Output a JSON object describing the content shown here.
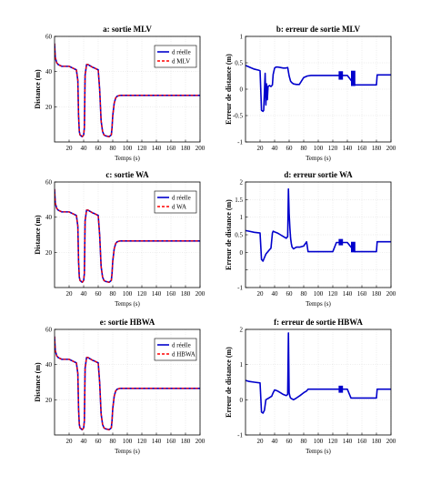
{
  "chart_data": [
    {
      "type": "line",
      "title": "a: sortie MLV",
      "xlabel": "Temps (s)",
      "ylabel": "Distance (m)",
      "xlim": [
        0,
        200
      ],
      "ylim": [
        0,
        60
      ],
      "xticks": [
        20,
        40,
        60,
        80,
        100,
        120,
        140,
        160,
        180,
        200
      ],
      "yticks": [
        20,
        40,
        60
      ],
      "grid": true,
      "legend_position": "top-right",
      "series": [
        {
          "name": "d réelle",
          "color": "#0000cc",
          "dash": false,
          "x": [
            0,
            1,
            3,
            5,
            10,
            20,
            25,
            30,
            32,
            33,
            34,
            35,
            38,
            40,
            41,
            42,
            44,
            46,
            48,
            50,
            52,
            55,
            60,
            62,
            64,
            66,
            68,
            70,
            75,
            78,
            79,
            80,
            82,
            84,
            86,
            90,
            100,
            120,
            140,
            160,
            180,
            200
          ],
          "y": [
            56,
            48,
            45,
            44,
            43,
            43,
            42,
            41,
            35,
            15,
            6,
            4,
            3,
            4,
            8,
            38,
            44,
            44,
            43.5,
            43,
            42.5,
            42,
            41,
            30,
            12,
            6,
            4,
            3.5,
            3,
            4,
            8,
            15,
            22,
            25,
            26,
            26.5,
            26.5,
            26.5,
            26.5,
            26.5,
            26.5,
            26.5
          ]
        },
        {
          "name": "d MLV",
          "color": "#ff0000",
          "dash": true,
          "x": [
            0,
            1,
            3,
            5,
            10,
            20,
            25,
            30,
            32,
            33,
            34,
            35,
            38,
            40,
            41,
            42,
            44,
            46,
            48,
            50,
            52,
            55,
            60,
            62,
            64,
            66,
            68,
            70,
            75,
            78,
            79,
            80,
            82,
            84,
            86,
            90,
            100,
            120,
            140,
            160,
            180,
            200
          ],
          "y": [
            56,
            48,
            45,
            44,
            43,
            43,
            42,
            41,
            35,
            15,
            6,
            4,
            3,
            4,
            8,
            38,
            44,
            44,
            43.5,
            43,
            42.5,
            42,
            41,
            30,
            12,
            6,
            4,
            3.5,
            3,
            4,
            8,
            15,
            22,
            25,
            26,
            26.5,
            26.5,
            26.5,
            26.5,
            26.5,
            26.5,
            26.5
          ]
        }
      ]
    },
    {
      "type": "line",
      "title": "b: erreur de sortie MLV",
      "xlabel": "Temps (s)",
      "ylabel": "Erreur de distance (m)",
      "xlim": [
        0,
        200
      ],
      "ylim": [
        -1,
        1
      ],
      "xticks": [
        20,
        40,
        60,
        80,
        100,
        120,
        140,
        160,
        180,
        200
      ],
      "yticks": [
        -1,
        -0.5,
        0,
        0.5,
        1
      ],
      "ytick_labels": [
        "-1",
        "-0.5",
        "0",
        "0.5",
        "1"
      ],
      "grid": true,
      "series": [
        {
          "name": "",
          "color": "#0000cc",
          "x": [
            0,
            5,
            12,
            18,
            20,
            22,
            24,
            25,
            27,
            28,
            29,
            30,
            31,
            33,
            35,
            37,
            38,
            40,
            42,
            44,
            48,
            52,
            55,
            58,
            60,
            62,
            64,
            66,
            70,
            74,
            80,
            85,
            90,
            100,
            110,
            120,
            128,
            140,
            150,
            160,
            170,
            180,
            181,
            190,
            200
          ],
          "y": [
            0.45,
            0.42,
            0.38,
            0.36,
            0.35,
            -0.4,
            -0.42,
            -0.4,
            0.3,
            -0.3,
            0.1,
            -0.2,
            0.05,
            0.07,
            0.05,
            0.08,
            0.28,
            0.4,
            0.42,
            0.42,
            0.41,
            0.4,
            0.4,
            0.41,
            0.25,
            0.15,
            0.12,
            0.1,
            0.09,
            0.09,
            0.22,
            0.25,
            0.26,
            0.26,
            0.26,
            0.26,
            0.26,
            0.26,
            0.08,
            0.08,
            0.08,
            0.08,
            0.27,
            0.27,
            0.27
          ]
        }
      ],
      "bands": [
        {
          "x": [
            128,
            134
          ],
          "y": [
            0.18,
            0.34
          ]
        },
        {
          "x": [
            145,
            151
          ],
          "y": [
            0.06,
            0.35
          ]
        }
      ]
    },
    {
      "type": "line",
      "title": "c: sortie WA",
      "xlabel": "Temps (s)",
      "ylabel": "Distance (m)",
      "xlim": [
        0,
        200
      ],
      "ylim": [
        0,
        60
      ],
      "xticks": [
        20,
        40,
        60,
        80,
        100,
        120,
        140,
        160,
        180,
        200
      ],
      "yticks": [
        20,
        40,
        60
      ],
      "grid": true,
      "legend_position": "top-right",
      "series": [
        {
          "name": "d réelle",
          "color": "#0000cc",
          "dash": false,
          "x": [
            0,
            1,
            3,
            5,
            10,
            20,
            25,
            30,
            32,
            33,
            34,
            35,
            38,
            40,
            41,
            42,
            44,
            46,
            48,
            50,
            52,
            55,
            60,
            62,
            64,
            66,
            68,
            70,
            75,
            78,
            79,
            80,
            82,
            84,
            86,
            90,
            100,
            120,
            140,
            160,
            180,
            200
          ],
          "y": [
            56,
            48,
            45,
            44,
            43,
            43,
            42,
            41,
            35,
            15,
            6,
            4,
            3,
            4,
            8,
            38,
            44,
            44,
            43.5,
            43,
            42.5,
            42,
            41,
            30,
            12,
            6,
            4,
            3.5,
            3,
            4,
            8,
            15,
            22,
            25,
            26,
            26.5,
            26.5,
            26.5,
            26.5,
            26.5,
            26.5,
            26.5
          ]
        },
        {
          "name": "d WA",
          "color": "#ff0000",
          "dash": true,
          "x": [
            0,
            1,
            3,
            5,
            10,
            20,
            25,
            30,
            32,
            33,
            34,
            35,
            38,
            40,
            41,
            42,
            44,
            46,
            48,
            50,
            52,
            55,
            60,
            62,
            64,
            66,
            68,
            70,
            75,
            78,
            79,
            80,
            82,
            84,
            86,
            90,
            100,
            120,
            140,
            160,
            180,
            200
          ],
          "y": [
            56,
            48,
            45,
            44,
            43,
            43,
            42,
            41,
            35,
            15,
            6,
            4,
            3,
            4,
            8,
            38,
            44,
            44,
            43.5,
            43,
            42.5,
            42,
            41,
            30,
            12,
            6,
            4,
            3.5,
            3,
            4,
            8,
            15,
            22,
            25,
            26,
            26.5,
            26.5,
            26.5,
            26.5,
            26.5,
            26.5,
            26.5
          ]
        }
      ]
    },
    {
      "type": "line",
      "title": "d: erreur sortie WA",
      "xlabel": "Temps (s)",
      "ylabel": "Erreur de distance (m)",
      "xlim": [
        0,
        200
      ],
      "ylim": [
        -1,
        2
      ],
      "xticks": [
        20,
        40,
        60,
        80,
        100,
        120,
        140,
        160,
        180,
        200
      ],
      "yticks": [
        -1,
        -0.5,
        0,
        0.5,
        1,
        1.5,
        2
      ],
      "ytick_labels": [
        "-1",
        "",
        "0",
        "0.5",
        "1",
        "1.5",
        "2"
      ],
      "grid": true,
      "series": [
        {
          "name": "",
          "color": "#0000cc",
          "x": [
            0,
            5,
            12,
            20,
            22,
            24,
            26,
            28,
            32,
            35,
            37,
            38,
            40,
            44,
            48,
            52,
            56,
            58,
            59,
            60,
            61,
            62,
            63,
            64,
            66,
            70,
            75,
            80,
            84,
            86,
            90,
            100,
            110,
            120,
            125,
            140,
            150,
            160,
            170,
            180,
            181,
            190,
            200
          ],
          "y": [
            0.62,
            0.6,
            0.57,
            0.55,
            -0.2,
            -0.25,
            -0.15,
            -0.05,
            0.05,
            0.12,
            0.55,
            0.6,
            0.58,
            0.55,
            0.5,
            0.45,
            0.4,
            0.45,
            1.8,
            1.1,
            0.7,
            0.4,
            0.25,
            0.15,
            0.1,
            0.15,
            0.15,
            0.18,
            0.3,
            0.02,
            0.02,
            0.02,
            0.02,
            0.02,
            0.28,
            0.28,
            0.02,
            0.02,
            0.02,
            0.02,
            0.3,
            0.3,
            0.3
          ]
        }
      ],
      "bands": [
        {
          "x": [
            128,
            134
          ],
          "y": [
            0.2,
            0.38
          ]
        },
        {
          "x": [
            145,
            151
          ],
          "y": [
            0.0,
            0.3
          ]
        }
      ]
    },
    {
      "type": "line",
      "title": "e: sortie HBWA",
      "xlabel": "Temps (s)",
      "ylabel": "Distance (m)",
      "xlim": [
        0,
        200
      ],
      "ylim": [
        0,
        60
      ],
      "xticks": [
        20,
        40,
        60,
        80,
        100,
        120,
        140,
        160,
        180,
        200
      ],
      "yticks": [
        20,
        40,
        60
      ],
      "grid": true,
      "legend_position": "top-right",
      "series": [
        {
          "name": "d réelle",
          "color": "#0000cc",
          "dash": false,
          "x": [
            0,
            1,
            3,
            5,
            10,
            20,
            25,
            30,
            32,
            33,
            34,
            35,
            38,
            40,
            41,
            42,
            44,
            46,
            48,
            50,
            52,
            55,
            60,
            62,
            64,
            66,
            68,
            70,
            75,
            78,
            79,
            80,
            82,
            84,
            86,
            90,
            100,
            120,
            140,
            160,
            180,
            200
          ],
          "y": [
            56,
            48,
            45,
            44,
            43,
            43,
            42,
            41,
            35,
            15,
            6,
            4,
            3,
            4,
            8,
            38,
            44,
            44,
            43.5,
            43,
            42.5,
            42,
            41,
            30,
            12,
            6,
            4,
            3.5,
            3,
            4,
            8,
            15,
            22,
            25,
            26,
            26.5,
            26.5,
            26.5,
            26.5,
            26.5,
            26.5,
            26.5
          ]
        },
        {
          "name": "d HBWA",
          "color": "#ff0000",
          "dash": true,
          "x": [
            0,
            1,
            3,
            5,
            10,
            20,
            25,
            30,
            32,
            33,
            34,
            35,
            38,
            40,
            41,
            42,
            44,
            46,
            48,
            50,
            52,
            55,
            60,
            62,
            64,
            66,
            68,
            70,
            75,
            78,
            79,
            80,
            82,
            84,
            86,
            90,
            100,
            120,
            140,
            160,
            180,
            200
          ],
          "y": [
            56,
            48,
            45,
            44,
            43,
            43,
            42,
            41,
            35,
            15,
            6,
            4,
            3,
            4,
            8,
            38,
            44,
            44,
            43.5,
            43,
            42.5,
            42,
            41,
            30,
            12,
            6,
            4,
            3.5,
            3,
            4,
            8,
            15,
            22,
            25,
            26,
            26.5,
            26.5,
            26.5,
            26.5,
            26.5,
            26.5,
            26.5
          ]
        }
      ]
    },
    {
      "type": "line",
      "title": "f: erreur de sortie HBWA",
      "xlabel": "Temps (s)",
      "ylabel": "Erreur de distance (m)",
      "xlim": [
        0,
        200
      ],
      "ylim": [
        -1,
        2
      ],
      "xticks": [
        20,
        40,
        60,
        80,
        100,
        120,
        140,
        160,
        180,
        200
      ],
      "yticks": [
        -1,
        0,
        1,
        2
      ],
      "ytick_labels": [
        "-1",
        "0",
        "1",
        "2"
      ],
      "grid": true,
      "series": [
        {
          "name": "",
          "color": "#0000cc",
          "x": [
            0,
            5,
            12,
            20,
            22,
            24,
            26,
            28,
            32,
            36,
            38,
            40,
            44,
            48,
            52,
            56,
            58,
            59,
            60,
            61,
            62,
            66,
            70,
            75,
            80,
            84,
            86,
            90,
            100,
            120,
            125,
            140,
            145,
            160,
            180,
            181,
            190,
            200
          ],
          "y": [
            0.55,
            0.52,
            0.5,
            0.48,
            -0.35,
            -0.38,
            -0.3,
            0.0,
            0.05,
            0.1,
            0.2,
            0.28,
            0.25,
            0.2,
            0.15,
            0.12,
            0.15,
            1.9,
            0.2,
            0.1,
            0.05,
            0.0,
            0.05,
            0.12,
            0.2,
            0.25,
            0.3,
            0.3,
            0.3,
            0.3,
            0.3,
            0.3,
            0.05,
            0.05,
            0.05,
            0.3,
            0.3,
            0.3
          ]
        }
      ],
      "bands": [
        {
          "x": [
            128,
            134
          ],
          "y": [
            0.2,
            0.4
          ]
        }
      ]
    }
  ]
}
